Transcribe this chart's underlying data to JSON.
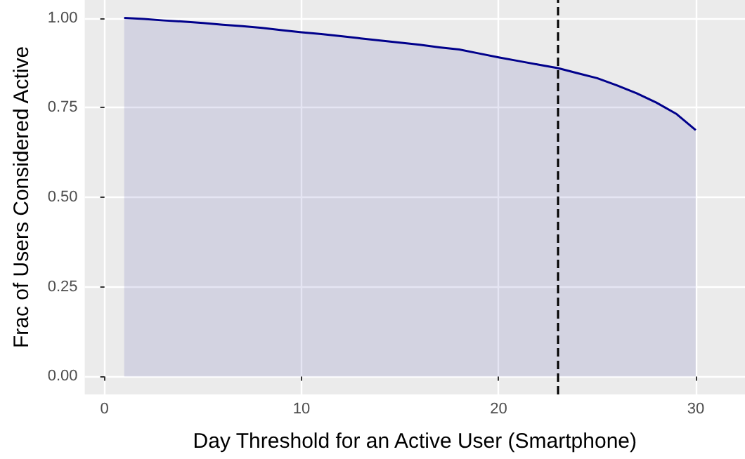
{
  "chart_data": {
    "type": "area",
    "xlabel": "Day Threshold for an Active User (Smartphone)",
    "ylabel": "Frac of Users Considered Active",
    "x": [
      1,
      2,
      3,
      4,
      5,
      6,
      7,
      8,
      9,
      10,
      11,
      12,
      13,
      14,
      15,
      16,
      17,
      18,
      19,
      20,
      21,
      22,
      23,
      24,
      25,
      26,
      27,
      28,
      29,
      30
    ],
    "series": [
      {
        "color": "#00008b",
        "values": [
          1.0,
          0.997,
          0.993,
          0.99,
          0.986,
          0.981,
          0.977,
          0.972,
          0.966,
          0.96,
          0.955,
          0.949,
          0.943,
          0.937,
          0.931,
          0.925,
          0.918,
          0.912,
          0.901,
          0.89,
          0.88,
          0.87,
          0.86,
          0.846,
          0.832,
          0.812,
          0.79,
          0.764,
          0.733,
          0.687
        ]
      }
    ],
    "xlim": [
      -1,
      32.5
    ],
    "xticks": [
      0,
      10,
      20,
      30
    ],
    "ylim": [
      -0.05,
      1.05
    ],
    "yticks": [
      {
        "value": 0,
        "label": "0.00"
      },
      {
        "value": 0.25,
        "label": "0.25"
      },
      {
        "value": 0.5,
        "label": "0.50"
      },
      {
        "value": 0.75,
        "label": "0.75"
      },
      {
        "value": 1,
        "label": "1.00"
      }
    ],
    "ref_lines": [
      {
        "axis": "x",
        "value": 23,
        "color": "#000000",
        "line_style": "dashed"
      }
    ],
    "grid": true,
    "marker": "none",
    "line_style": "solid"
  }
}
